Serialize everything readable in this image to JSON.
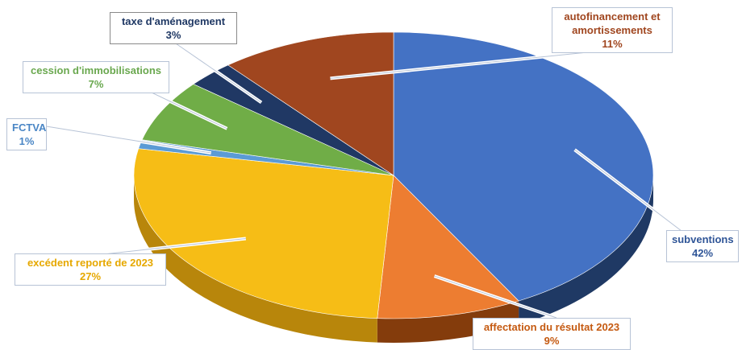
{
  "chart_data": {
    "type": "pie",
    "style": "3d-exploded-style pie with callout labels",
    "title": "",
    "slices": [
      {
        "label": "subventions",
        "value": 42,
        "value_label": "42%",
        "color": "#4472c4",
        "side": "#1f3964"
      },
      {
        "label": "affectation du résultat 2023",
        "value": 9,
        "value_label": "9%",
        "color": "#ed7d31",
        "side": "#843c0c"
      },
      {
        "label": "excédent reporté de 2023",
        "value": 27,
        "value_label": "27%",
        "color": "#f6bd16",
        "side": "#b8860b"
      },
      {
        "label": "FCTVA",
        "value": 1,
        "value_label": "1%",
        "color": "#5b9bd5",
        "side": "#2e5f8a"
      },
      {
        "label": "cession d'immobilisations",
        "value": 7,
        "value_label": "7%",
        "color": "#70ad47",
        "side": "#3d6b22"
      },
      {
        "label": "taxe d'aménagement",
        "value": 3,
        "value_label": "3%",
        "color": "#203864",
        "side": "#111f38"
      },
      {
        "label": "autofinancement et amortissements",
        "value": 11,
        "value_label": "11%",
        "color": "#a0461f",
        "side": "#5a2510"
      }
    ],
    "legend": "none",
    "label_colors": {
      "subventions": "#2f5597",
      "affectation du résultat 2023": "#c55a11",
      "excédent reporté de 2023": "#e6a800",
      "FCTVA": "#4a86c5",
      "cession d'immobilisations": "#6aa84f",
      "taxe d'aménagement": "#1f3864",
      "autofinancement et amortissements": "#a0461f"
    }
  }
}
